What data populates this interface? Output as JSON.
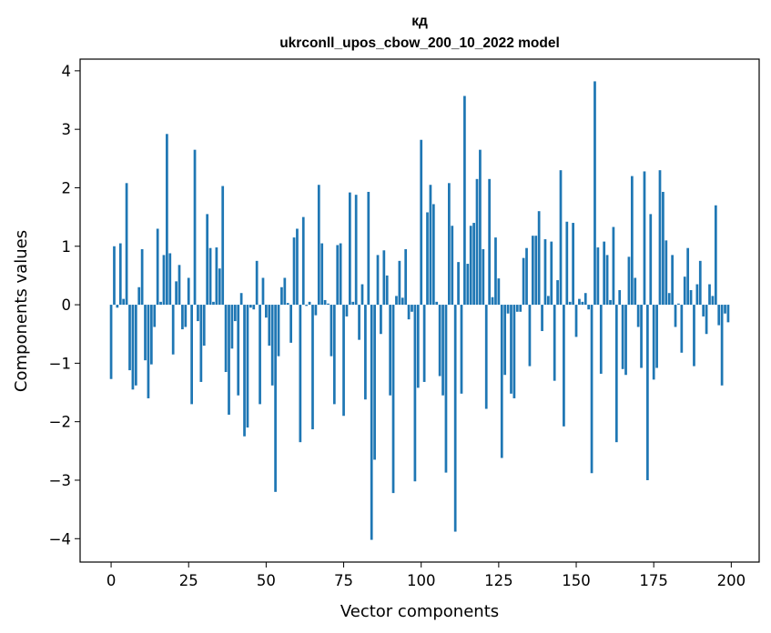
{
  "chart_data": {
    "type": "bar",
    "title": "кд",
    "subtitle": "ukrconll_upos_cbow_200_10_2022 model",
    "xlabel": "Vector components",
    "ylabel": "Components values",
    "xlim": [
      -10,
      209
    ],
    "ylim": [
      -4.4,
      4.2
    ],
    "xticks": [
      0,
      25,
      50,
      75,
      100,
      125,
      150,
      175,
      200
    ],
    "yticks": [
      -4,
      -3,
      -2,
      -1,
      0,
      1,
      2,
      3,
      4
    ],
    "xtick_labels": [
      "0",
      "25",
      "50",
      "75",
      "100",
      "125",
      "150",
      "175",
      "200"
    ],
    "ytick_labels": [
      "−4",
      "−3",
      "−2",
      "−1",
      "0",
      "1",
      "2",
      "3",
      "4"
    ],
    "bar_color": "#1f77b4",
    "grid": false,
    "legend": "none",
    "x": [
      0,
      1,
      2,
      3,
      4,
      5,
      6,
      7,
      8,
      9,
      10,
      11,
      12,
      13,
      14,
      15,
      16,
      17,
      18,
      19,
      20,
      21,
      22,
      23,
      24,
      25,
      26,
      27,
      28,
      29,
      30,
      31,
      32,
      33,
      34,
      35,
      36,
      37,
      38,
      39,
      40,
      41,
      42,
      43,
      44,
      45,
      46,
      47,
      48,
      49,
      50,
      51,
      52,
      53,
      54,
      55,
      56,
      57,
      58,
      59,
      60,
      61,
      62,
      63,
      64,
      65,
      66,
      67,
      68,
      69,
      70,
      71,
      72,
      73,
      74,
      75,
      76,
      77,
      78,
      79,
      80,
      81,
      82,
      83,
      84,
      85,
      86,
      87,
      88,
      89,
      90,
      91,
      92,
      93,
      94,
      95,
      96,
      97,
      98,
      99,
      100,
      101,
      102,
      103,
      104,
      105,
      106,
      107,
      108,
      109,
      110,
      111,
      112,
      113,
      114,
      115,
      116,
      117,
      118,
      119,
      120,
      121,
      122,
      123,
      124,
      125,
      126,
      127,
      128,
      129,
      130,
      131,
      132,
      133,
      134,
      135,
      136,
      137,
      138,
      139,
      140,
      141,
      142,
      143,
      144,
      145,
      146,
      147,
      148,
      149,
      150,
      151,
      152,
      153,
      154,
      155,
      156,
      157,
      158,
      159,
      160,
      161,
      162,
      163,
      164,
      165,
      166,
      167,
      168,
      169,
      170,
      171,
      172,
      173,
      174,
      175,
      176,
      177,
      178,
      179,
      180,
      181,
      182,
      183,
      184,
      185,
      186,
      187,
      188,
      189,
      190,
      191,
      192,
      193,
      194,
      195,
      196,
      197,
      198,
      199
    ],
    "values": [
      -1.27,
      1.0,
      -0.05,
      1.05,
      0.1,
      2.08,
      -1.12,
      -1.45,
      -1.38,
      0.3,
      0.95,
      -0.95,
      -1.6,
      -1.02,
      -0.38,
      1.3,
      0.05,
      0.85,
      2.92,
      0.88,
      -0.85,
      0.4,
      0.68,
      -0.42,
      -0.38,
      0.46,
      -1.7,
      2.65,
      -0.28,
      -1.32,
      -0.7,
      1.55,
      0.97,
      0.05,
      0.98,
      0.62,
      2.03,
      -1.15,
      -1.88,
      -0.75,
      -0.28,
      -1.55,
      0.2,
      -2.25,
      -2.1,
      -0.05,
      -0.08,
      0.75,
      -1.7,
      0.46,
      -0.22,
      -0.7,
      -1.38,
      -3.2,
      -0.88,
      0.3,
      0.46,
      0.03,
      -0.65,
      1.15,
      1.3,
      -2.35,
      1.5,
      -0.02,
      0.05,
      -2.13,
      -0.18,
      2.05,
      1.05,
      0.08,
      0.02,
      -0.88,
      -1.7,
      1.02,
      1.05,
      -1.9,
      -0.2,
      1.92,
      0.05,
      1.88,
      -0.6,
      0.35,
      -1.62,
      1.93,
      -4.02,
      -2.65,
      0.85,
      -0.5,
      0.93,
      0.5,
      -1.55,
      -3.22,
      0.15,
      0.75,
      0.12,
      0.95,
      -0.25,
      -0.12,
      -3.02,
      -1.42,
      2.82,
      -1.32,
      1.58,
      2.05,
      1.72,
      0.05,
      -1.22,
      -1.55,
      -2.87,
      2.08,
      1.35,
      -3.88,
      0.73,
      -1.52,
      3.57,
      0.7,
      1.35,
      1.4,
      2.15,
      2.65,
      0.95,
      -1.78,
      2.15,
      0.13,
      1.15,
      0.45,
      -2.62,
      -1.2,
      -0.15,
      -1.52,
      -1.6,
      -0.12,
      -0.12,
      0.8,
      0.97,
      -1.05,
      1.18,
      1.18,
      1.6,
      -0.45,
      1.12,
      0.15,
      1.08,
      -1.3,
      0.42,
      2.3,
      -2.08,
      1.42,
      0.05,
      1.4,
      -0.55,
      0.1,
      0.05,
      0.2,
      -0.08,
      -2.88,
      3.82,
      0.98,
      -1.18,
      1.08,
      0.85,
      0.08,
      1.33,
      -2.35,
      0.25,
      -1.1,
      -1.2,
      0.82,
      2.2,
      0.46,
      -0.38,
      -1.08,
      2.28,
      -3.0,
      1.55,
      -1.28,
      -1.08,
      2.3,
      1.93,
      1.1,
      0.2,
      0.85,
      -0.38,
      0.02,
      -0.82,
      0.48,
      0.97,
      0.25,
      -1.05,
      0.35,
      0.75,
      -0.2,
      -0.5,
      0.35,
      0.15,
      1.7,
      -0.35,
      -1.38,
      -0.15,
      -0.3
    ]
  }
}
